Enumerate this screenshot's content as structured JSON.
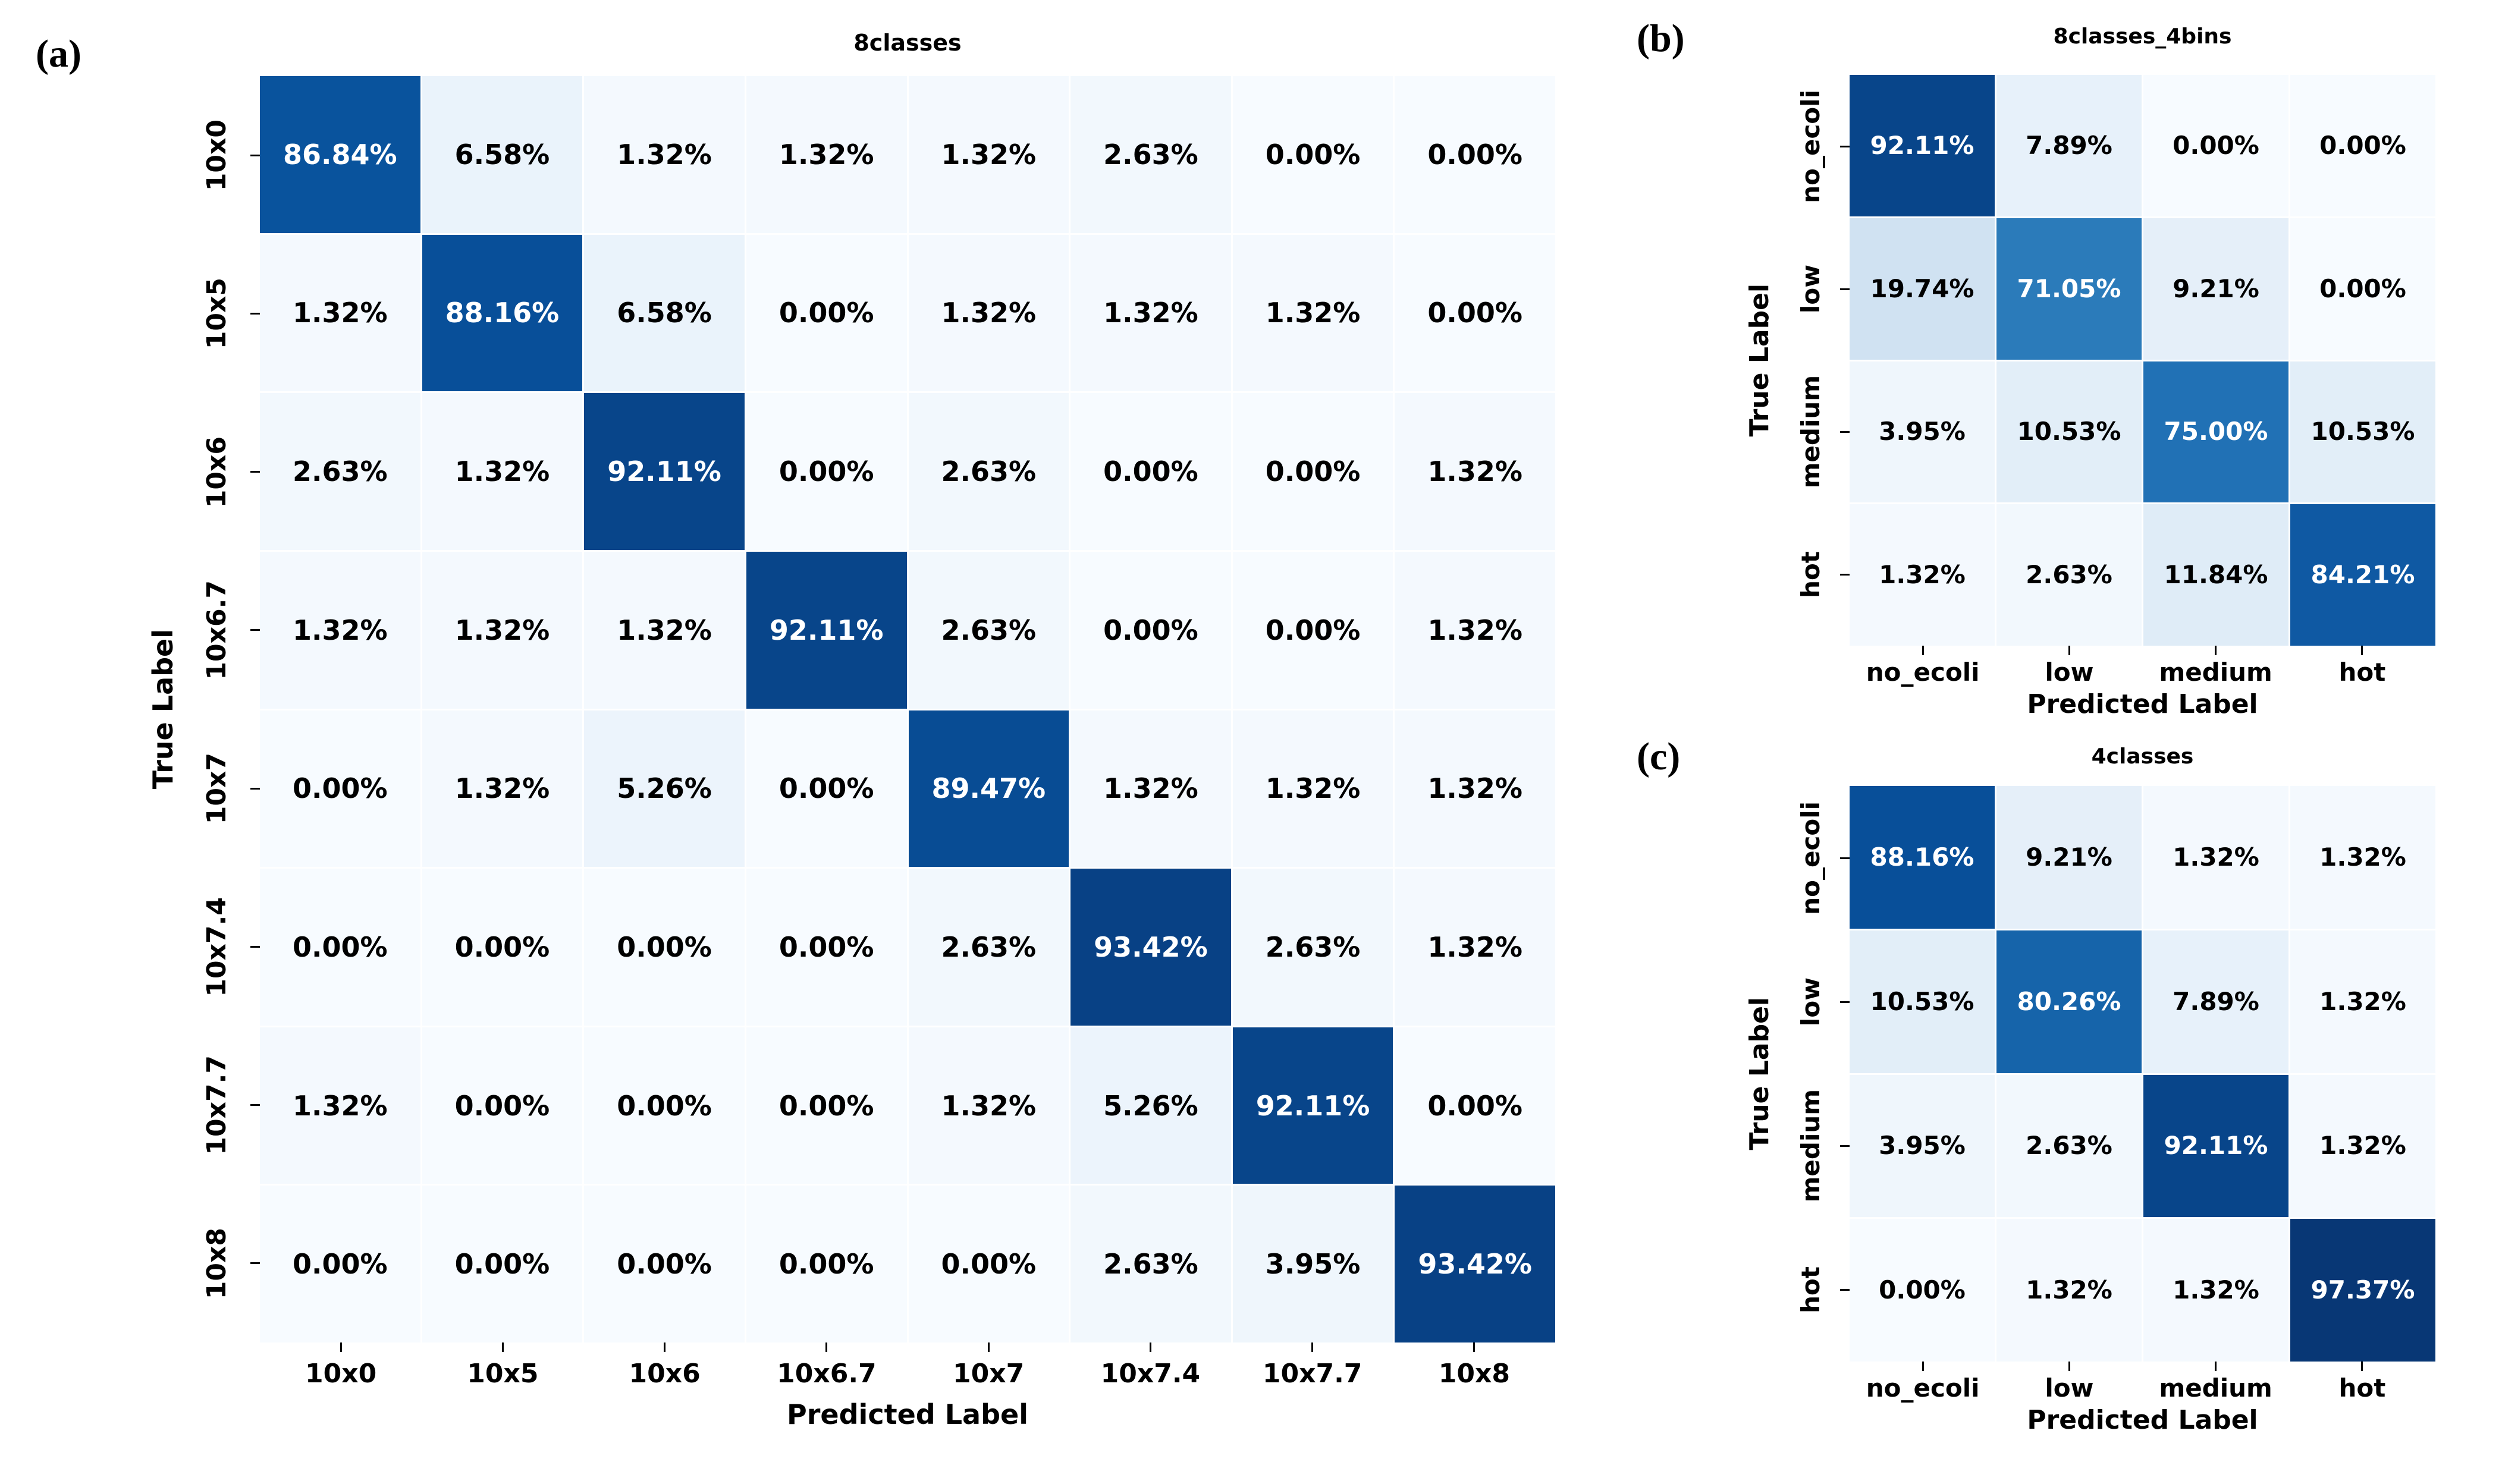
{
  "figure": {
    "background": "#ffffff"
  },
  "chart_meta": {
    "colormap_name": "Blues",
    "colormap_stops": [
      {
        "t": 0.0,
        "color": "#f7fbff"
      },
      {
        "t": 0.125,
        "color": "#deebf7"
      },
      {
        "t": 0.25,
        "color": "#c6dbef"
      },
      {
        "t": 0.375,
        "color": "#9ecae1"
      },
      {
        "t": 0.5,
        "color": "#6baed6"
      },
      {
        "t": 0.625,
        "color": "#4292c6"
      },
      {
        "t": 0.75,
        "color": "#2171b5"
      },
      {
        "t": 0.875,
        "color": "#08519c"
      },
      {
        "t": 1.0,
        "color": "#08306b"
      }
    ],
    "vmin": 0,
    "vmax": 100,
    "white_text_threshold": 50,
    "cell_value_suffix": "%",
    "cell_text_color_dark": "#000000",
    "cell_text_color_light": "#ffffff"
  },
  "chart_data": [
    {
      "type": "heatmap",
      "panel_tag": "(a)",
      "title": "8classes",
      "xlabel": "Predicted Label",
      "ylabel": "True Label",
      "x_labels": [
        "10x0",
        "10x5",
        "10x6",
        "10x6.7",
        "10x7",
        "10x7.4",
        "10x7.7",
        "10x8"
      ],
      "y_labels": [
        "10x0",
        "10x5",
        "10x6",
        "10x6.7",
        "10x7",
        "10x7.4",
        "10x7.7",
        "10x8"
      ],
      "values_percent": [
        [
          86.84,
          6.58,
          1.32,
          1.32,
          1.32,
          2.63,
          0.0,
          0.0
        ],
        [
          1.32,
          88.16,
          6.58,
          0.0,
          1.32,
          1.32,
          1.32,
          0.0
        ],
        [
          2.63,
          1.32,
          92.11,
          0.0,
          2.63,
          0.0,
          0.0,
          1.32
        ],
        [
          1.32,
          1.32,
          1.32,
          92.11,
          2.63,
          0.0,
          0.0,
          1.32
        ],
        [
          0.0,
          1.32,
          5.26,
          0.0,
          89.47,
          1.32,
          1.32,
          1.32
        ],
        [
          0.0,
          0.0,
          0.0,
          0.0,
          2.63,
          93.42,
          2.63,
          1.32
        ],
        [
          1.32,
          0.0,
          0.0,
          0.0,
          1.32,
          5.26,
          92.11,
          0.0
        ],
        [
          0.0,
          0.0,
          0.0,
          0.0,
          0.0,
          2.63,
          3.95,
          93.42
        ]
      ]
    },
    {
      "type": "heatmap",
      "panel_tag": "(b)",
      "title": "8classes_4bins",
      "xlabel": "Predicted Label",
      "ylabel": "True Label",
      "x_labels": [
        "no_ecoli",
        "low",
        "medium",
        "hot"
      ],
      "y_labels": [
        "no_ecoli",
        "low",
        "medium",
        "hot"
      ],
      "values_percent": [
        [
          92.11,
          7.89,
          0.0,
          0.0
        ],
        [
          19.74,
          71.05,
          9.21,
          0.0
        ],
        [
          3.95,
          10.53,
          75.0,
          10.53
        ],
        [
          1.32,
          2.63,
          11.84,
          84.21
        ]
      ]
    },
    {
      "type": "heatmap",
      "panel_tag": "(c)",
      "title": "4classes",
      "xlabel": "Predicted Label",
      "ylabel": "True Label",
      "x_labels": [
        "no_ecoli",
        "low",
        "medium",
        "hot"
      ],
      "y_labels": [
        "no_ecoli",
        "low",
        "medium",
        "hot"
      ],
      "values_percent": [
        [
          88.16,
          9.21,
          1.32,
          1.32
        ],
        [
          10.53,
          80.26,
          7.89,
          1.32
        ],
        [
          3.95,
          2.63,
          92.11,
          1.32
        ],
        [
          0.0,
          1.32,
          1.32,
          97.37
        ]
      ]
    }
  ]
}
